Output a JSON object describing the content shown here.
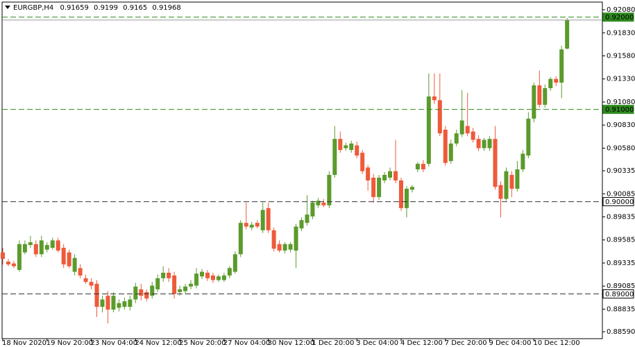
{
  "chart_data": {
    "type": "candlestick",
    "title": "EURGBP,H4",
    "xlim": [
      -0.5,
      108
    ],
    "xticks": [
      {
        "value": 0,
        "label": "18 Nov 2020"
      },
      {
        "value": 8,
        "label": "19 Nov 20:00"
      },
      {
        "value": 16,
        "label": "23 Nov 04:00"
      },
      {
        "value": 24,
        "label": "24 Nov 12:00"
      },
      {
        "value": 32,
        "label": "25 Nov 20:00"
      },
      {
        "value": 40,
        "label": "27 Nov 04:00"
      },
      {
        "value": 48,
        "label": "30 Nov 12:00"
      },
      {
        "value": 56,
        "label": "1 Dec 20:00"
      },
      {
        "value": 64,
        "label": "3 Dec 04:00"
      },
      {
        "value": 72,
        "label": "4 Dec 12:00"
      },
      {
        "value": 80,
        "label": "7 Dec 20:00"
      },
      {
        "value": 88,
        "label": "9 Dec 04:00"
      },
      {
        "value": 96,
        "label": "10 Dec 12:00"
      }
    ],
    "ylim": [
      0.88515,
      0.92163
    ],
    "yticks": [
      {
        "value": 0.9208,
        "label": "0.92080"
      },
      {
        "value": 0.9183,
        "label": "0.91830"
      },
      {
        "value": 0.9158,
        "label": "0.91580"
      },
      {
        "value": 0.9133,
        "label": "0.91330"
      },
      {
        "value": 0.9108,
        "label": "0.91080"
      },
      {
        "value": 0.9083,
        "label": "0.90830"
      },
      {
        "value": 0.9058,
        "label": "0.90580"
      },
      {
        "value": 0.90335,
        "label": "0.90335"
      },
      {
        "value": 0.90085,
        "label": "0.90085"
      },
      {
        "value": 0.89835,
        "label": "0.89835"
      },
      {
        "value": 0.89585,
        "label": "0.89585"
      },
      {
        "value": 0.89335,
        "label": "0.89335"
      },
      {
        "value": 0.89085,
        "label": "0.89085"
      },
      {
        "value": 0.88835,
        "label": "0.88835"
      },
      {
        "value": 0.8859,
        "label": "0.88590"
      }
    ],
    "up_color": "#5b9a2c",
    "down_color": "#ee5a3a",
    "levels": [
      {
        "value": 0.92,
        "label": "0.92000",
        "color": "#2f8a1f"
      },
      {
        "value": 0.91,
        "label": "0.91000",
        "color": "#2f8a1f"
      },
      {
        "value": 0.9,
        "label": "0.90000",
        "color": "#333333"
      },
      {
        "value": 0.89,
        "label": "0.89000",
        "color": "#333333"
      }
    ],
    "series": [
      {
        "name": "EURGBP,H4",
        "open": [
          0.8945,
          0.8935,
          0.8933,
          0.8926,
          0.8945,
          0.8953,
          0.8954,
          0.8943,
          0.8948,
          0.895,
          0.8958,
          0.895,
          0.8945,
          0.8924,
          0.8928,
          0.8917,
          0.8913,
          0.8911,
          0.8886,
          0.8898,
          0.8883,
          0.8885,
          0.8886,
          0.8886,
          0.8894,
          0.8905,
          0.8902,
          0.8898,
          0.8905,
          0.8917,
          0.8923,
          0.892,
          0.8902,
          0.8903,
          0.8908,
          0.8909,
          0.8919,
          0.8923,
          0.892,
          0.8915,
          0.8915,
          0.892,
          0.8924,
          0.8943,
          0.8977,
          0.8972,
          0.8977,
          0.8969,
          0.8993,
          0.8969,
          0.8954,
          0.8947,
          0.8948,
          0.8947,
          0.8971,
          0.8977,
          0.8984,
          0.8996,
          0.8999,
          0.8996,
          0.9029,
          0.9068,
          0.9058,
          0.9056,
          0.9061,
          0.9053,
          0.9037,
          0.9026,
          0.9005,
          0.9023,
          0.9026,
          0.9033,
          0.9023,
          0.8993,
          0.9013,
          0.9035,
          0.9041,
          0.9041,
          0.9114,
          0.911,
          0.9078,
          0.9044,
          0.9063,
          0.9073,
          0.9082,
          0.9076,
          0.9068,
          0.9058,
          0.9058,
          0.9068,
          0.9018,
          0.9003,
          0.9029,
          0.9014,
          0.9035,
          0.905,
          0.909,
          0.9126,
          0.9105,
          0.9123,
          0.9133,
          0.9129,
          0.91659
        ],
        "high": [
          0.895,
          0.8938,
          0.8936,
          0.8958,
          0.8958,
          0.8963,
          0.8958,
          0.8963,
          0.8956,
          0.8961,
          0.8961,
          0.8954,
          0.8948,
          0.8943,
          0.8932,
          0.8921,
          0.8917,
          0.8915,
          0.8898,
          0.8903,
          0.8902,
          0.8894,
          0.8896,
          0.8898,
          0.8912,
          0.8911,
          0.8905,
          0.8913,
          0.8921,
          0.893,
          0.8928,
          0.8924,
          0.8909,
          0.8911,
          0.8915,
          0.8928,
          0.8927,
          0.8926,
          0.8923,
          0.8921,
          0.8923,
          0.893,
          0.8946,
          0.898,
          0.8999,
          0.8978,
          0.898,
          0.8999,
          0.8999,
          0.8972,
          0.8958,
          0.8956,
          0.8956,
          0.8976,
          0.8983,
          0.9007,
          0.9001,
          0.9004,
          0.9003,
          0.9033,
          0.9082,
          0.9076,
          0.9064,
          0.9066,
          0.9065,
          0.9056,
          0.904,
          0.903,
          0.9029,
          0.9032,
          0.9037,
          0.9067,
          0.9026,
          0.9017,
          0.9018,
          0.9043,
          0.9045,
          0.9139,
          0.9139,
          0.9139,
          0.9082,
          0.9067,
          0.9078,
          0.9121,
          0.9118,
          0.908,
          0.9072,
          0.9069,
          0.9071,
          0.9082,
          0.9022,
          0.9037,
          0.9033,
          0.9044,
          0.9056,
          0.9097,
          0.9129,
          0.9142,
          0.9127,
          0.9135,
          0.9136,
          0.9169,
          0.9199
        ],
        "low": [
          0.8932,
          0.893,
          0.8928,
          0.8924,
          0.8943,
          0.895,
          0.894,
          0.894,
          0.8945,
          0.8948,
          0.8945,
          0.8928,
          0.8928,
          0.892,
          0.8917,
          0.8911,
          0.8905,
          0.8875,
          0.888,
          0.8868,
          0.888,
          0.8881,
          0.8883,
          0.8882,
          0.889,
          0.8893,
          0.8892,
          0.8895,
          0.8902,
          0.8913,
          0.8913,
          0.8895,
          0.8898,
          0.89,
          0.8905,
          0.8906,
          0.8916,
          0.8914,
          0.8912,
          0.8913,
          0.8913,
          0.8917,
          0.8922,
          0.894,
          0.897,
          0.8969,
          0.8971,
          0.8966,
          0.8966,
          0.8946,
          0.8945,
          0.8944,
          0.8945,
          0.8928,
          0.8968,
          0.8974,
          0.8981,
          0.8993,
          0.8994,
          0.8993,
          0.9026,
          0.9053,
          0.9055,
          0.9053,
          0.9047,
          0.903,
          0.9012,
          0.8999,
          0.9002,
          0.902,
          0.9023,
          0.902,
          0.899,
          0.8983,
          0.901,
          0.9032,
          0.9032,
          0.9038,
          0.9106,
          0.9071,
          0.9039,
          0.9041,
          0.906,
          0.907,
          0.9071,
          0.9064,
          0.9055,
          0.9055,
          0.9055,
          0.9013,
          0.8983,
          0.9001,
          0.9005,
          0.9011,
          0.9032,
          0.9047,
          0.9086,
          0.9102,
          0.9102,
          0.912,
          0.9125,
          0.9112,
          0.9165
        ],
        "close": [
          0.8938,
          0.8932,
          0.893,
          0.8954,
          0.8954,
          0.8956,
          0.8943,
          0.8958,
          0.8953,
          0.8958,
          0.8947,
          0.8932,
          0.893,
          0.8939,
          0.892,
          0.8913,
          0.8909,
          0.8886,
          0.8894,
          0.8883,
          0.8898,
          0.889,
          0.8892,
          0.8894,
          0.8908,
          0.8898,
          0.8895,
          0.8909,
          0.8917,
          0.8923,
          0.8917,
          0.89,
          0.8905,
          0.8908,
          0.8911,
          0.8922,
          0.8924,
          0.8917,
          0.8915,
          0.8919,
          0.892,
          0.8928,
          0.8943,
          0.8977,
          0.8973,
          0.8975,
          0.8973,
          0.8991,
          0.8969,
          0.8949,
          0.8947,
          0.8954,
          0.8954,
          0.8973,
          0.898,
          0.8986,
          0.8999,
          0.9001,
          0.8996,
          0.9029,
          0.9068,
          0.9056,
          0.9061,
          0.9063,
          0.905,
          0.9033,
          0.9023,
          0.9005,
          0.9026,
          0.9029,
          0.9033,
          0.9023,
          0.8993,
          0.9014,
          0.9016,
          0.9041,
          0.9035,
          0.9114,
          0.911,
          0.9074,
          0.9042,
          0.9063,
          0.9074,
          0.9088,
          0.9074,
          0.9067,
          0.9058,
          0.9067,
          0.9068,
          0.9016,
          0.9003,
          0.9033,
          0.9014,
          0.9035,
          0.9052,
          0.909,
          0.9126,
          0.9105,
          0.9123,
          0.9133,
          0.9129,
          0.9165,
          0.91968
        ]
      }
    ]
  }
}
